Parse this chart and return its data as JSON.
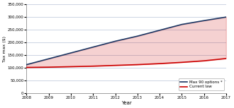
{
  "years": [
    2008,
    2009,
    2010,
    2011,
    2012,
    2013,
    2014,
    2015,
    2016,
    2017
  ],
  "max_90_values": [
    113000,
    136000,
    159000,
    182000,
    205000,
    225000,
    248000,
    271000,
    286000,
    300000
  ],
  "current_law_values": [
    102000,
    103000,
    105000,
    107000,
    110000,
    113000,
    117000,
    122000,
    128000,
    137000
  ],
  "ylim": [
    0,
    350000
  ],
  "yticks": [
    0,
    50000,
    100000,
    150000,
    200000,
    250000,
    300000,
    350000
  ],
  "xlabel": "Year",
  "ylabel": "Tax max ($)",
  "legend_labels": [
    "Max 90 options *",
    "Current law"
  ],
  "line_color_max90": "#1a3562",
  "line_color_current": "#cc0000",
  "background_color": "#ffffff",
  "grid_color": "#b8c4d8",
  "fill_color": "#cc0000",
  "fill_alpha": 0.18
}
